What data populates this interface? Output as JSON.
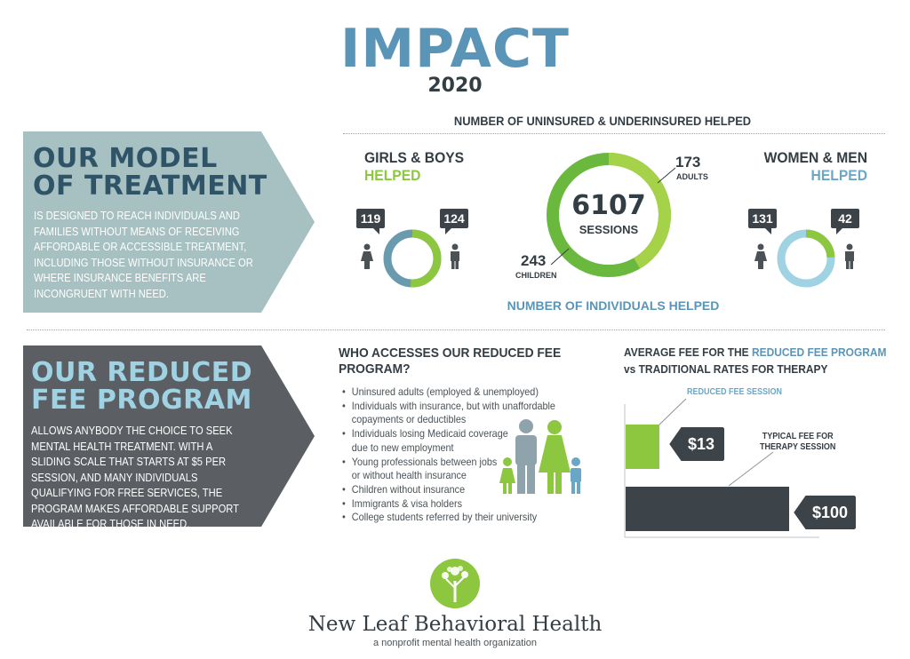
{
  "header": {
    "title": "IMPACT",
    "year": "2020"
  },
  "uninsured_heading": "NUMBER OF UNINSURED & UNDERINSURED HELPED",
  "model_panel": {
    "title_line1": "OUR MODEL",
    "title_line2": "OF TREATMENT",
    "body": "IS DESIGNED TO REACH INDIVIDUALS AND FAMILIES WITHOUT MEANS OF RECEIVING AFFORDABLE OR ACCESSIBLE TREATMENT, INCLUDING THOSE WITHOUT INSURANCE OR WHERE INSURANCE BENEFITS ARE INCONGRUENT WITH NEED.",
    "color": "#a7c0c2"
  },
  "girls_boys": {
    "label_line1": "GIRLS & BOYS",
    "label_line2": "HELPED",
    "girls": "119",
    "boys": "124",
    "girls_value": 119,
    "boys_value": 124
  },
  "sessions": {
    "total": "6107",
    "label": "SESSIONS",
    "adults_value": "173",
    "adults_label": "ADULTS",
    "children_value": "243",
    "children_label": "CHILDREN",
    "adults_num": 173,
    "children_num": 243,
    "caption": "NUMBER OF INDIVIDUALS HELPED"
  },
  "women_men": {
    "label_line1": "WOMEN & MEN",
    "label_line2": "HELPED",
    "women": "131",
    "men": "42",
    "women_value": 131,
    "men_value": 42
  },
  "reduced_panel": {
    "title_line1": "OUR REDUCED",
    "title_line2": "FEE PROGRAM",
    "body": "ALLOWS ANYBODY THE CHOICE TO SEEK MENTAL HEALTH TREATMENT.  WITH A SLIDING SCALE THAT STARTS AT $5 PER SESSION, AND MANY INDIVIDUALS QUALIFYING FOR FREE SERVICES, THE PROGRAM MAKES AFFORDABLE SUPPORT AVAILABLE FOR THOSE IN NEED.",
    "color": "#5b5f63"
  },
  "who_accesses": {
    "heading_line1": "WHO ACCESSES OUR REDUCED FEE",
    "heading_line2": "PROGRAM?",
    "items": [
      {
        "line1": "Uninsured adults (employed & unemployed)"
      },
      {
        "line1": "Individuals with insurance, but with unaffordable",
        "line2": "copayments or deductibles"
      },
      {
        "line1": "Individuals losing Medicaid coverage",
        "line2": "due to new employment"
      },
      {
        "line1": "Young professionals between jobs",
        "line2": "or without health insurance"
      },
      {
        "line1": "Children without insurance"
      },
      {
        "line1": "Immigrants & visa holders"
      },
      {
        "line1": "College students referred by their university"
      }
    ]
  },
  "fees": {
    "heading_part1": "AVERAGE FEE FOR THE ",
    "heading_highlight": "REDUCED FEE PROGRAM",
    "heading_line2": "vs TRADITIONAL RATES FOR THERAPY",
    "reduced_label": "REDUCED FEE SESSION",
    "typical_label_line1": "TYPICAL FEE FOR",
    "typical_label_line2": "THERAPY SESSION",
    "reduced_price": "$13",
    "typical_price": "$100",
    "reduced_value": 13,
    "typical_value": 100
  },
  "colors": {
    "green": "#8dc63f",
    "blue": "#6aa7c7",
    "dark": "#333d44",
    "light_blue": "#9fd3e3"
  },
  "footer": {
    "org_name": "New Leaf Behavioral Health",
    "tagline": "a nonprofit mental health organization"
  }
}
